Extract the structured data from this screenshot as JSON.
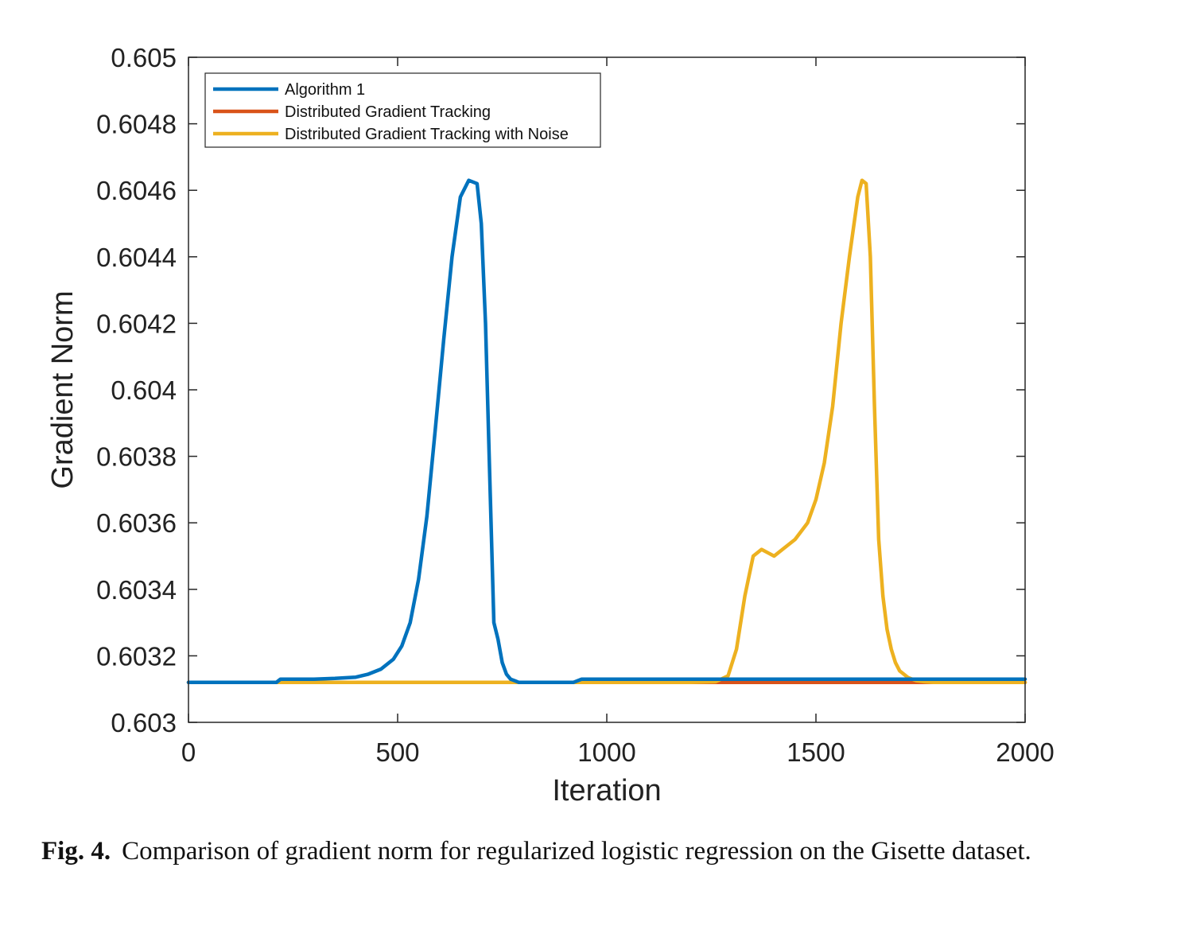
{
  "chart_data": {
    "type": "line",
    "title": "",
    "xlabel": "Iteration",
    "ylabel": "Gradient Norm",
    "xlim": [
      0,
      2000
    ],
    "ylim": [
      0.603,
      0.605
    ],
    "xticks": [
      0,
      500,
      1000,
      1500,
      2000
    ],
    "xtick_labels": [
      "0",
      "500",
      "1000",
      "1500",
      "2000"
    ],
    "yticks": [
      0.603,
      0.6032,
      0.6034,
      0.6036,
      0.6038,
      0.604,
      0.6042,
      0.6044,
      0.6046,
      0.6048,
      0.605
    ],
    "ytick_labels": [
      "0.603",
      "0.6032",
      "0.6034",
      "0.6036",
      "0.6038",
      "0.604",
      "0.6042",
      "0.6044",
      "0.6046",
      "0.6048",
      "0.605"
    ],
    "grid": false,
    "legend_position": "top-left",
    "series": [
      {
        "name": "Algorithm 1",
        "color": "#0072BD",
        "x": [
          0,
          210,
          220,
          300,
          350,
          400,
          430,
          460,
          490,
          510,
          530,
          550,
          570,
          590,
          610,
          630,
          650,
          670,
          690,
          700,
          710,
          720,
          730,
          740,
          750,
          760,
          770,
          780,
          790,
          800,
          810,
          820,
          830,
          850,
          900,
          920,
          940,
          1000,
          1200,
          1400,
          1600,
          1800,
          2000
        ],
        "y": [
          0.60312,
          0.60312,
          0.60313,
          0.60313,
          0.603132,
          0.603136,
          0.603145,
          0.60316,
          0.60319,
          0.60323,
          0.6033,
          0.60343,
          0.60362,
          0.60388,
          0.60415,
          0.6044,
          0.60458,
          0.60463,
          0.60462,
          0.6045,
          0.6042,
          0.60375,
          0.6033,
          0.60325,
          0.60318,
          0.603145,
          0.60313,
          0.603125,
          0.60312,
          0.60312,
          0.60312,
          0.60312,
          0.60312,
          0.60312,
          0.60312,
          0.60312,
          0.60313,
          0.60313,
          0.60313,
          0.60313,
          0.60313,
          0.60313,
          0.60313
        ]
      },
      {
        "name": "Distributed Gradient Tracking",
        "color": "#D95319",
        "x": [
          0,
          2000
        ],
        "y": [
          0.60312,
          0.60312
        ]
      },
      {
        "name": "Distributed Gradient Tracking with Noise",
        "color": "#EDB120",
        "x": [
          0,
          1200,
          1260,
          1290,
          1310,
          1330,
          1350,
          1370,
          1385,
          1400,
          1420,
          1450,
          1480,
          1500,
          1520,
          1540,
          1560,
          1580,
          1600,
          1610,
          1620,
          1630,
          1640,
          1650,
          1660,
          1670,
          1680,
          1690,
          1700,
          1720,
          1740,
          1760,
          1780,
          1800,
          2000
        ],
        "y": [
          0.60312,
          0.60312,
          0.603122,
          0.60314,
          0.60322,
          0.60338,
          0.6035,
          0.60352,
          0.60351,
          0.6035,
          0.60352,
          0.60355,
          0.6036,
          0.60367,
          0.60378,
          0.60395,
          0.6042,
          0.6044,
          0.60458,
          0.60463,
          0.60462,
          0.6044,
          0.60395,
          0.60355,
          0.60338,
          0.60328,
          0.60322,
          0.60318,
          0.603155,
          0.603135,
          0.603125,
          0.603122,
          0.60312,
          0.60312,
          0.60312
        ]
      }
    ]
  },
  "caption": {
    "label": "Fig. 4.",
    "text": "Comparison of gradient norm for regularized logistic regression on the Gisette dataset."
  }
}
